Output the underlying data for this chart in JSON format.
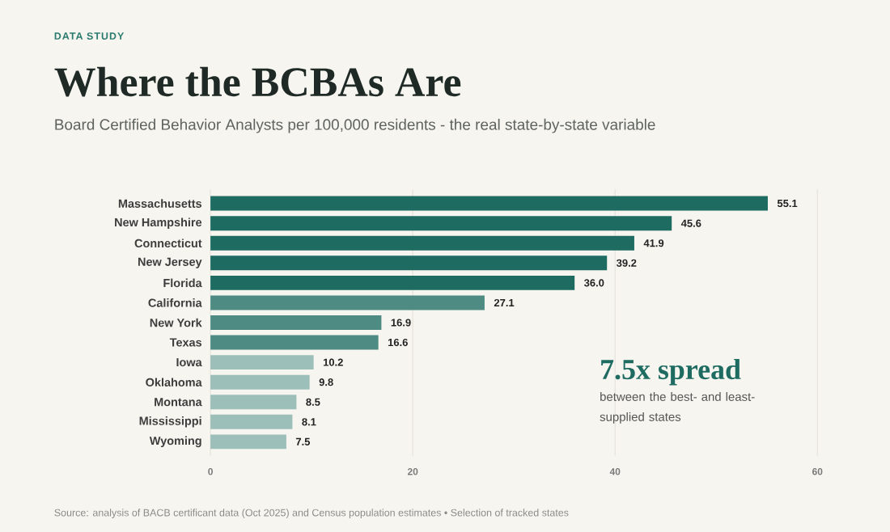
{
  "chart_data": {
    "type": "bar",
    "orientation": "horizontal",
    "title": "Where the BCBAs Are",
    "subtitle": "Board Certified Behavior Analysts per 100,000 residents - the real state-by-state variable",
    "categories": [
      "Massachusetts",
      "New Hampshire",
      "Connecticut",
      "New Jersey",
      "Florida",
      "California",
      "New York",
      "Texas",
      "Iowa",
      "Oklahoma",
      "Montana",
      "Mississippi",
      "Wyoming"
    ],
    "values": [
      55.1,
      45.6,
      41.9,
      39.2,
      36.0,
      27.1,
      16.9,
      16.6,
      10.2,
      9.8,
      8.5,
      8.1,
      7.5
    ],
    "value_labels": [
      "55.1",
      "45.6",
      "41.9",
      "39.2",
      "36.0",
      "27.1",
      "16.9",
      "16.6",
      "10.2",
      "9.8",
      "8.5",
      "8.1",
      "7.5"
    ],
    "colors": [
      "#1e6b62",
      "#1e6b62",
      "#1e6b62",
      "#1e6b62",
      "#1e6b62",
      "#4e8c83",
      "#4e8c83",
      "#4e8c83",
      "#9dbfba",
      "#9dbfba",
      "#9dbfba",
      "#9dbfba",
      "#9dbfba"
    ],
    "xlim": [
      0,
      60
    ],
    "xticks": [
      0,
      20,
      40,
      60
    ],
    "grid": "x",
    "annotations": [
      "DATA STUDY",
      "7.5x spread",
      "between the best- and least-supplied states",
      "Source: analysis of BACB certificant data (Oct 2025) and Census population estimates • Selection of tracked states"
    ]
  }
}
